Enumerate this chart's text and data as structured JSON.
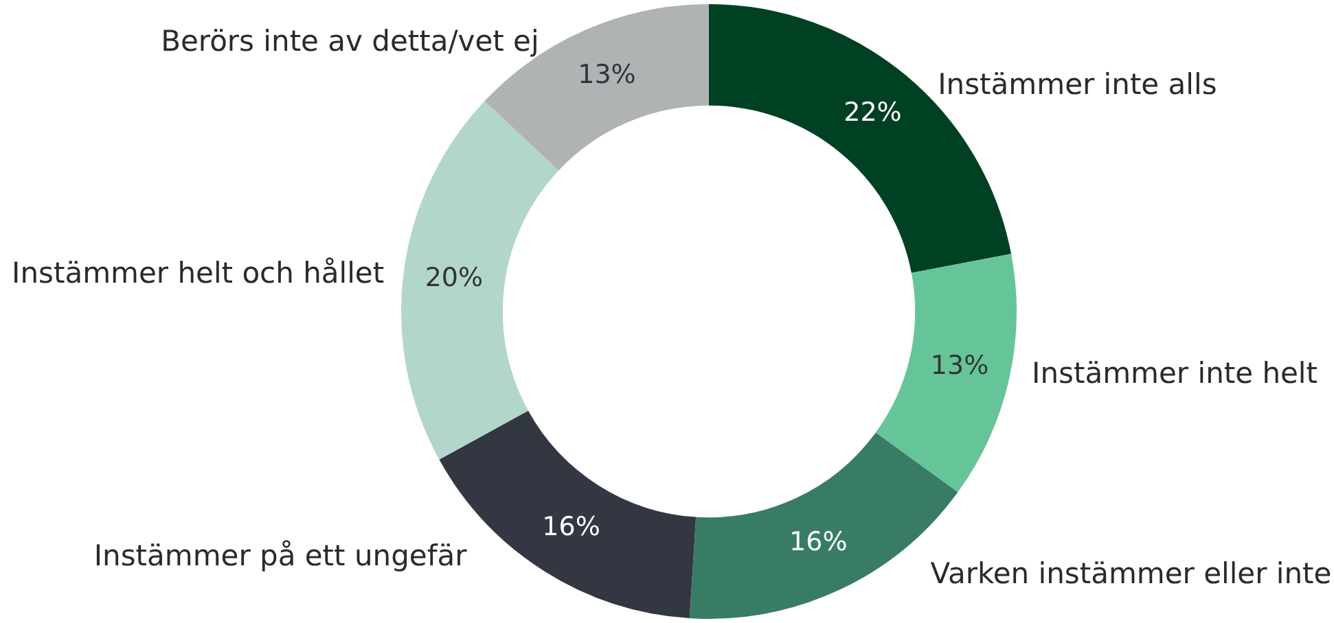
{
  "chart_data": {
    "type": "donut",
    "categories": [
      "Instämmer inte alls",
      "Instämmer inte helt",
      "Varken instämmer eller inte",
      "Instämmer på ett ungefär",
      "Instämmer helt och hållet",
      "Berörs inte av detta/vet ej"
    ],
    "values": [
      22,
      13,
      16,
      16,
      20,
      13
    ],
    "colors": [
      "#004023",
      "#66c598",
      "#397c66",
      "#333742",
      "#b3d6cb",
      "#b0b3b3"
    ],
    "value_labels": [
      "22%",
      "13%",
      "16%",
      "16%",
      "20%",
      "13%"
    ]
  }
}
